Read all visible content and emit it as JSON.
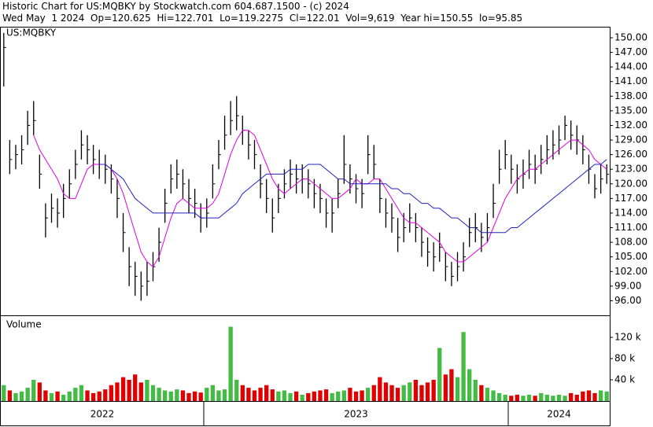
{
  "chart_data": {
    "type": "ohlc",
    "title": "Historic Chart for US:MQBKY by Stockwatch.com 604.687.1500 - (c) 2024",
    "subtitle": "Wed May  1 2024  Op=120.625  Hi=122.701  Lo=119.2275  Cl=122.01  Vol=9,619  Year hi=150.55  lo=95.85",
    "price_label": "US:MQBKY",
    "volume_label": "Volume",
    "x": [
      "2022",
      "2022",
      "2022",
      "2022",
      "2022",
      "2022",
      "2022",
      "2022",
      "2022",
      "2022",
      "2022",
      "2022",
      "2022",
      "2022",
      "2022",
      "2022",
      "2022",
      "2022",
      "2022",
      "2022",
      "2022",
      "2022",
      "2022",
      "2022",
      "2022",
      "2022",
      "2022",
      "2022",
      "2022",
      "2022",
      "2022",
      "2022",
      "2022",
      "2022",
      "2023",
      "2023",
      "2023",
      "2023",
      "2023",
      "2023",
      "2023",
      "2023",
      "2023",
      "2023",
      "2023",
      "2023",
      "2023",
      "2023",
      "2023",
      "2023",
      "2023",
      "2023",
      "2023",
      "2023",
      "2023",
      "2023",
      "2023",
      "2023",
      "2023",
      "2023",
      "2023",
      "2023",
      "2023",
      "2023",
      "2023",
      "2023",
      "2023",
      "2023",
      "2023",
      "2023",
      "2023",
      "2023",
      "2023",
      "2023",
      "2023",
      "2023",
      "2023",
      "2023",
      "2023",
      "2023",
      "2023",
      "2023",
      "2023",
      "2023",
      "2023",
      "2024",
      "2024",
      "2024",
      "2024",
      "2024",
      "2024",
      "2024",
      "2024",
      "2024",
      "2024",
      "2024",
      "2024",
      "2024",
      "2024",
      "2024",
      "2024",
      "2024"
    ],
    "high": [
      151,
      129,
      128,
      130,
      135,
      137,
      126,
      116,
      118,
      117,
      120,
      123,
      127,
      131,
      130,
      128,
      127,
      126,
      124,
      121,
      114,
      107,
      104,
      102,
      104,
      106,
      111,
      119,
      124,
      125,
      123,
      121,
      119,
      116,
      117,
      124,
      129,
      134,
      137,
      138,
      134,
      131,
      129,
      124,
      121,
      117,
      120,
      123,
      125,
      124,
      124,
      123,
      121,
      120,
      117,
      117,
      121,
      130,
      124,
      122,
      121,
      130,
      128,
      121,
      117,
      116,
      113,
      114,
      116,
      114,
      111,
      109,
      108,
      110,
      106,
      104,
      106,
      108,
      113,
      114,
      112,
      114,
      120,
      127,
      129,
      126,
      124,
      125,
      127,
      126,
      128,
      130,
      131,
      132,
      134,
      133,
      132,
      130,
      126,
      122,
      124,
      124
    ],
    "low": [
      140,
      122,
      123,
      124,
      128,
      130,
      119,
      109,
      112,
      111,
      113,
      117,
      121,
      125,
      124,
      122,
      121,
      120,
      118,
      113,
      106,
      99,
      97,
      96,
      97,
      100,
      104,
      112,
      118,
      119,
      117,
      114,
      113,
      110,
      111,
      117,
      123,
      127,
      130,
      131,
      128,
      125,
      123,
      117,
      114,
      110,
      114,
      117,
      119,
      118,
      118,
      117,
      115,
      114,
      111,
      110,
      115,
      120,
      118,
      116,
      115,
      122,
      121,
      114,
      111,
      110,
      106,
      108,
      110,
      108,
      105,
      103,
      102,
      104,
      100,
      99,
      100,
      102,
      107,
      108,
      106,
      108,
      113,
      120,
      123,
      120,
      118,
      119,
      121,
      120,
      122,
      124,
      125,
      126,
      129,
      127,
      126,
      124,
      120,
      117,
      118,
      120
    ],
    "close": [
      148,
      125,
      126,
      127,
      132,
      133,
      122,
      113,
      115,
      114,
      117,
      120,
      124,
      128,
      127,
      125,
      124,
      123,
      121,
      117,
      110,
      103,
      101,
      99,
      100,
      103,
      108,
      116,
      121,
      122,
      120,
      117,
      116,
      113,
      114,
      120,
      126,
      130,
      133,
      134,
      131,
      128,
      126,
      120,
      117,
      113,
      117,
      120,
      122,
      121,
      121,
      120,
      118,
      117,
      114,
      114,
      118,
      124,
      121,
      119,
      118,
      126,
      124,
      117,
      114,
      113,
      109,
      111,
      113,
      111,
      108,
      106,
      105,
      107,
      103,
      101,
      103,
      105,
      110,
      111,
      109,
      111,
      116,
      123,
      126,
      123,
      121,
      122,
      124,
      123,
      125,
      127,
      128,
      129,
      132,
      130,
      129,
      127,
      123,
      119,
      121,
      122
    ],
    "bar_color": "#000000",
    "series": [
      {
        "color": "#e000e0",
        "values": [
          null,
          null,
          null,
          null,
          null,
          130,
          127,
          125,
          123,
          121,
          118,
          117,
          117,
          120,
          123,
          124,
          124,
          124,
          123,
          121,
          118,
          114,
          110,
          106,
          104,
          103,
          105,
          109,
          113,
          116,
          117,
          116,
          115,
          115,
          115,
          116,
          118,
          122,
          126,
          129,
          131,
          131,
          130,
          127,
          124,
          121,
          119,
          118,
          119,
          120,
          121,
          121,
          120,
          119,
          118,
          117,
          117,
          118,
          119,
          121,
          120,
          120,
          121,
          121,
          119,
          117,
          115,
          113,
          112,
          112,
          111,
          110,
          109,
          108,
          106,
          105,
          104,
          104,
          105,
          106,
          107,
          108,
          111,
          114,
          117,
          119,
          121,
          122,
          123,
          123,
          124,
          125,
          126,
          127,
          128,
          129,
          129,
          128,
          127,
          125,
          124,
          123
        ]
      },
      {
        "color": "#2020c0",
        "values": [
          null,
          null,
          null,
          null,
          null,
          null,
          null,
          null,
          null,
          null,
          null,
          null,
          null,
          null,
          null,
          null,
          124,
          124,
          123,
          122,
          121,
          119,
          117,
          116,
          115,
          114,
          114,
          114,
          114,
          114,
          114,
          114,
          114,
          113,
          113,
          113,
          113,
          114,
          115,
          116,
          118,
          119,
          120,
          121,
          122,
          122,
          122,
          122,
          123,
          123,
          123,
          124,
          124,
          124,
          123,
          122,
          121,
          121,
          120,
          120,
          120,
          120,
          120,
          120,
          120,
          119,
          119,
          118,
          118,
          117,
          116,
          116,
          115,
          115,
          114,
          113,
          113,
          112,
          111,
          111,
          110,
          110,
          110,
          110,
          110,
          111,
          111,
          112,
          113,
          114,
          115,
          116,
          117,
          118,
          119,
          120,
          121,
          122,
          123,
          124,
          124,
          125
        ]
      }
    ],
    "volume": [
      30000,
      20000,
      15000,
      18000,
      25000,
      40000,
      35000,
      20000,
      15000,
      18000,
      12000,
      18000,
      25000,
      30000,
      20000,
      15000,
      18000,
      22000,
      30000,
      35000,
      45000,
      40000,
      50000,
      35000,
      40000,
      30000,
      25000,
      20000,
      18000,
      22000,
      20000,
      15000,
      18000,
      16000,
      25000,
      30000,
      20000,
      22000,
      140000,
      40000,
      30000,
      25000,
      20000,
      25000,
      30000,
      22000,
      18000,
      20000,
      15000,
      18000,
      12000,
      15000,
      18000,
      20000,
      22000,
      15000,
      18000,
      20000,
      25000,
      18000,
      20000,
      25000,
      30000,
      45000,
      35000,
      30000,
      25000,
      30000,
      35000,
      40000,
      30000,
      35000,
      40000,
      100000,
      50000,
      60000,
      45000,
      130000,
      60000,
      40000,
      30000,
      25000,
      20000,
      15000,
      12000,
      10000,
      12000,
      10000,
      12000,
      10000,
      15000,
      12000,
      10000,
      12000,
      10000,
      15000,
      12000,
      18000,
      20000,
      15000,
      20000,
      18000
    ],
    "up_color": "#44bb44",
    "down_color": "#e00000",
    "ylim": [
      93,
      152.1
    ],
    "yticks": [
      {
        "value": 96,
        "label": "96.00"
      },
      {
        "value": 99,
        "label": "99.00"
      },
      {
        "value": 102,
        "label": "102.00"
      },
      {
        "value": 105,
        "label": "105.00"
      },
      {
        "value": 108,
        "label": "108.00"
      },
      {
        "value": 111,
        "label": "111.00"
      },
      {
        "value": 114,
        "label": "114.00"
      },
      {
        "value": 117,
        "label": "117.00"
      },
      {
        "value": 120,
        "label": "120.00"
      },
      {
        "value": 123,
        "label": "123.00"
      },
      {
        "value": 126,
        "label": "126.00"
      },
      {
        "value": 129,
        "label": "129.00"
      },
      {
        "value": 132,
        "label": "132.00"
      },
      {
        "value": 135,
        "label": "135.00"
      },
      {
        "value": 138,
        "label": "138.00"
      },
      {
        "value": 141,
        "label": "141.00"
      },
      {
        "value": 144,
        "label": "144.00"
      },
      {
        "value": 147,
        "label": "147.00"
      },
      {
        "value": 150,
        "label": "150.00"
      }
    ],
    "y2lim": [
      0,
      160000
    ],
    "y2ticks": [
      {
        "value": 40000,
        "label": "40 k"
      },
      {
        "value": 80000,
        "label": "80 k"
      },
      {
        "value": 120000,
        "label": "120 k"
      }
    ],
    "grid": false
  }
}
